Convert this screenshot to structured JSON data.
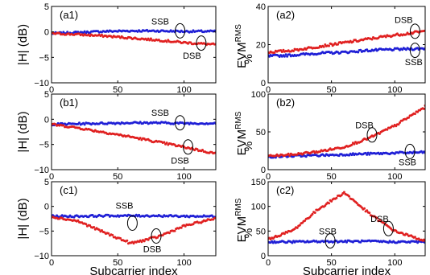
{
  "colors": {
    "SSB": "#1f1fd6",
    "DSB": "#e02020"
  },
  "chart_data": [
    {
      "panel": "a1",
      "type": "scatter",
      "label": "(a1)",
      "ylabel": "|H| (dB)",
      "xlabel": "",
      "xlim": [
        0,
        124
      ],
      "ylim": [
        -10,
        5
      ],
      "xticks": [
        "0",
        "50",
        "100"
      ],
      "yticks": [
        "5",
        "0",
        "-5",
        "-10"
      ],
      "series": [
        {
          "name": "SSB",
          "color": "#1f1fd6",
          "x": [
            0,
            20,
            40,
            60,
            80,
            100,
            124
          ],
          "y": [
            -0.3,
            -0.1,
            0.1,
            0.2,
            0.2,
            0.1,
            0.1
          ]
        },
        {
          "name": "DSB",
          "color": "#e02020",
          "x": [
            0,
            20,
            40,
            60,
            80,
            100,
            124
          ],
          "y": [
            -0.3,
            -0.5,
            -0.8,
            -1.2,
            -1.6,
            -2.1,
            -2.5
          ]
        }
      ],
      "annotations": [
        {
          "text": "SSB",
          "x": 97,
          "y": 0.2,
          "tx": 82,
          "ty": 2.1
        },
        {
          "text": "DSB",
          "x": 113,
          "y": -2.2,
          "tx": 106,
          "ty": -4.6
        }
      ]
    },
    {
      "panel": "a2",
      "type": "scatter",
      "label": "(a2)",
      "ylabel": "EVM",
      "ylabel_sub": "RMS",
      "ylabel_unit": "%",
      "xlabel": "",
      "xlim": [
        0,
        124
      ],
      "ylim": [
        0,
        40
      ],
      "xticks": [
        "0",
        "50",
        "100"
      ],
      "yticks": [
        "40",
        "20",
        "0"
      ],
      "series": [
        {
          "name": "SSB",
          "color": "#1f1fd6",
          "x": [
            0,
            20,
            40,
            60,
            80,
            100,
            124
          ],
          "y": [
            14,
            14.5,
            15.5,
            16,
            17,
            17.5,
            18
          ]
        },
        {
          "name": "DSB",
          "color": "#e02020",
          "x": [
            0,
            20,
            40,
            60,
            80,
            100,
            124
          ],
          "y": [
            16,
            17,
            19,
            21,
            23,
            25,
            27
          ]
        }
      ],
      "annotations": [
        {
          "text": "DSB",
          "x": 116,
          "y": 27,
          "tx": 107,
          "ty": 33
        },
        {
          "text": "SSB",
          "x": 116,
          "y": 17,
          "tx": 115,
          "ty": 11
        }
      ]
    },
    {
      "panel": "b1",
      "type": "scatter",
      "label": "(b1)",
      "ylabel": "|H| (dB)",
      "xlabel": "",
      "xlim": [
        0,
        124
      ],
      "ylim": [
        -10,
        5
      ],
      "xticks": [
        "0",
        "50",
        "100"
      ],
      "yticks": [
        "5",
        "0",
        "-5",
        "-10"
      ],
      "series": [
        {
          "name": "SSB",
          "color": "#1f1fd6",
          "x": [
            0,
            20,
            40,
            60,
            80,
            100,
            124
          ],
          "y": [
            -1.0,
            -0.9,
            -0.8,
            -0.7,
            -0.7,
            -0.8,
            -0.8
          ]
        },
        {
          "name": "DSB",
          "color": "#e02020",
          "x": [
            0,
            20,
            40,
            60,
            80,
            100,
            124
          ],
          "y": [
            -1.0,
            -1.7,
            -2.6,
            -3.5,
            -4.5,
            -5.5,
            -6.8
          ]
        }
      ],
      "annotations": [
        {
          "text": "SSB",
          "x": 97,
          "y": -0.7,
          "tx": 82,
          "ty": 1.3
        },
        {
          "text": "DSB",
          "x": 103,
          "y": -5.5,
          "tx": 97,
          "ty": -8.2
        }
      ]
    },
    {
      "panel": "b2",
      "type": "scatter",
      "label": "(b2)",
      "ylabel": "EVM",
      "ylabel_sub": "RMS",
      "ylabel_unit": "%",
      "xlabel": "",
      "xlim": [
        0,
        124
      ],
      "ylim": [
        0,
        100
      ],
      "xticks": [
        "0",
        "50",
        "100"
      ],
      "yticks": [
        "100",
        "50",
        "0"
      ],
      "series": [
        {
          "name": "SSB",
          "color": "#1f1fd6",
          "x": [
            0,
            20,
            40,
            60,
            80,
            100,
            124
          ],
          "y": [
            17,
            18,
            19,
            20,
            21,
            22,
            23
          ]
        },
        {
          "name": "DSB",
          "color": "#e02020",
          "x": [
            0,
            20,
            40,
            60,
            80,
            100,
            124
          ],
          "y": [
            18,
            20,
            24,
            30,
            42,
            58,
            83
          ]
        }
      ],
      "annotations": [
        {
          "text": "DSB",
          "x": 82,
          "y": 46,
          "tx": 76,
          "ty": 59
        },
        {
          "text": "SSB",
          "x": 112,
          "y": 24,
          "tx": 110,
          "ty": 10
        }
      ]
    },
    {
      "panel": "c1",
      "type": "scatter",
      "label": "(c1)",
      "ylabel": "|H| (dB)",
      "xlabel": "Subcarrier index",
      "xlim": [
        0,
        124
      ],
      "ylim": [
        -10,
        5
      ],
      "xticks": [
        "0",
        "50",
        "100"
      ],
      "yticks": [
        "5",
        "0",
        "-5",
        "-10"
      ],
      "series": [
        {
          "name": "SSB",
          "color": "#1f1fd6",
          "x": [
            0,
            20,
            40,
            60,
            80,
            100,
            124
          ],
          "y": [
            -2.0,
            -2.0,
            -1.9,
            -1.9,
            -1.9,
            -2.0,
            -2.0
          ]
        },
        {
          "name": "DSB",
          "color": "#e02020",
          "x": [
            0,
            20,
            40,
            60,
            80,
            100,
            124
          ],
          "y": [
            -2.1,
            -3.0,
            -5.3,
            -7.5,
            -6.2,
            -4.0,
            -2.4
          ]
        }
      ],
      "annotations": [
        {
          "text": "SSB",
          "x": 61,
          "y": -3.4,
          "tx": 55,
          "ty": 0.2
        },
        {
          "text": "DSB",
          "x": 79,
          "y": -6.0,
          "tx": 76,
          "ty": -8.6
        }
      ]
    },
    {
      "panel": "c2",
      "type": "scatter",
      "label": "(c2)",
      "ylabel": "EVM",
      "ylabel_sub": "RMS",
      "ylabel_unit": "%",
      "xlabel": "Subcarrier index",
      "xlim": [
        0,
        124
      ],
      "ylim": [
        0,
        150
      ],
      "xticks": [
        "0",
        "50",
        "100"
      ],
      "yticks": [
        "150",
        "100",
        "50",
        "0"
      ],
      "series": [
        {
          "name": "SSB",
          "color": "#1f1fd6",
          "x": [
            0,
            20,
            40,
            60,
            80,
            100,
            124
          ],
          "y": [
            28,
            28,
            29,
            29,
            29,
            28,
            28
          ]
        },
        {
          "name": "DSB",
          "color": "#e02020",
          "x": [
            0,
            20,
            40,
            60,
            80,
            100,
            124
          ],
          "y": [
            33,
            52,
            95,
            128,
            85,
            50,
            30
          ]
        }
      ],
      "annotations": [
        {
          "text": "SSB",
          "x": 49,
          "y": 30,
          "tx": 47,
          "ty": 50
        },
        {
          "text": "DSB",
          "x": 95,
          "y": 55,
          "tx": 88,
          "ty": 75
        }
      ]
    }
  ]
}
